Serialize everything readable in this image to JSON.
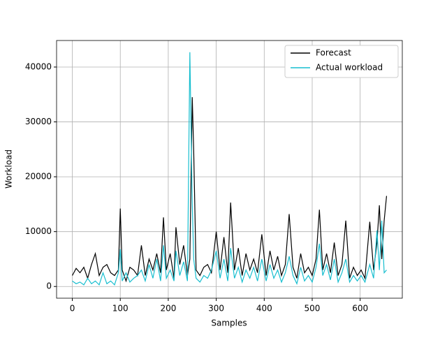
{
  "chart_data": {
    "type": "line",
    "xlabel": "Samples",
    "ylabel": "Workload",
    "x": [
      0,
      8,
      16,
      24,
      32,
      40,
      48,
      56,
      64,
      72,
      80,
      88,
      96,
      100,
      104,
      112,
      120,
      128,
      136,
      144,
      152,
      160,
      168,
      176,
      184,
      190,
      196,
      204,
      212,
      216,
      224,
      232,
      240,
      245,
      250,
      253,
      258,
      266,
      274,
      282,
      290,
      300,
      308,
      316,
      324,
      330,
      338,
      346,
      354,
      362,
      370,
      378,
      386,
      395,
      404,
      412,
      420,
      428,
      436,
      444,
      452,
      460,
      468,
      476,
      484,
      492,
      500,
      508,
      515,
      522,
      530,
      538,
      546,
      554,
      562,
      570,
      578,
      586,
      594,
      602,
      610,
      620,
      628,
      635,
      640,
      645,
      650,
      655
    ],
    "series": [
      {
        "name": "Forecast",
        "color": "#000000",
        "values": [
          2000,
          3300,
          2500,
          3500,
          1500,
          4000,
          6000,
          2000,
          3500,
          4000,
          2500,
          2000,
          3000,
          14200,
          3000,
          1000,
          3500,
          3000,
          2000,
          7500,
          2000,
          5000,
          3000,
          6000,
          2500,
          12600,
          3000,
          6000,
          1500,
          10800,
          4000,
          7500,
          2000,
          5000,
          34500,
          24800,
          3000,
          2000,
          3500,
          4000,
          2500,
          10000,
          3000,
          9000,
          2500,
          15300,
          3000,
          7000,
          2000,
          6000,
          3000,
          5000,
          2500,
          9500,
          2000,
          6500,
          3000,
          5500,
          2000,
          4000,
          13200,
          3500,
          1500,
          6000,
          2500,
          3500,
          2000,
          5000,
          14000,
          3000,
          6000,
          2500,
          8000,
          2000,
          4000,
          12000,
          1500,
          3500,
          2000,
          3000,
          1500,
          11800,
          3000,
          8000,
          14800,
          5000,
          12000,
          16500
        ]
      },
      {
        "name": "Actual workload",
        "color": "#17becf",
        "values": [
          1000,
          500,
          800,
          300,
          1500,
          500,
          1000,
          300,
          2500,
          500,
          1000,
          300,
          2500,
          6800,
          1000,
          2500,
          800,
          1500,
          2000,
          3000,
          1000,
          4000,
          1500,
          5000,
          1000,
          7500,
          1500,
          3000,
          1000,
          6500,
          2000,
          4500,
          1000,
          42700,
          15000,
          5000,
          1500,
          800,
          2000,
          1500,
          3000,
          6500,
          1500,
          5000,
          1000,
          7000,
          1500,
          3500,
          800,
          3000,
          1500,
          3500,
          1000,
          5000,
          1000,
          4000,
          1500,
          3000,
          800,
          2500,
          5500,
          2000,
          500,
          3500,
          1000,
          2000,
          800,
          3500,
          7800,
          2000,
          4000,
          1200,
          5000,
          800,
          2500,
          5000,
          800,
          2000,
          1000,
          2000,
          800,
          4000,
          1500,
          10200,
          3000,
          12000,
          2500,
          3000
        ]
      }
    ],
    "xlim": [
      -32.8,
      687.8
    ],
    "ylim": [
      -2135,
      44835
    ],
    "xticks": [
      0,
      100,
      200,
      300,
      400,
      500,
      600
    ],
    "yticks": [
      0,
      10000,
      20000,
      30000,
      40000
    ],
    "grid": true,
    "legend": "upper right"
  }
}
